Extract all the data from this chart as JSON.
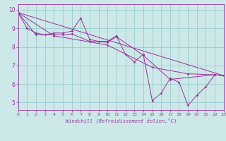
{
  "xlabel": "Windchill (Refroidissement éolien,°C)",
  "bg_color": "#cce8e8",
  "line_color": "#993399",
  "grid_color": "#99cccc",
  "xlim": [
    0,
    23
  ],
  "ylim": [
    4.6,
    10.3
  ],
  "xticks": [
    0,
    1,
    2,
    3,
    4,
    5,
    6,
    7,
    8,
    9,
    10,
    11,
    12,
    13,
    14,
    15,
    16,
    17,
    18,
    19,
    20,
    21,
    22,
    23
  ],
  "yticks": [
    5,
    6,
    7,
    8,
    9,
    10
  ],
  "series1": [
    [
      0,
      9.85
    ],
    [
      1,
      9.0
    ],
    [
      2,
      8.75
    ],
    [
      3,
      8.65
    ],
    [
      4,
      8.75
    ],
    [
      5,
      8.75
    ],
    [
      6,
      8.85
    ],
    [
      7,
      9.55
    ],
    [
      8,
      8.4
    ],
    [
      9,
      8.3
    ],
    [
      10,
      8.3
    ],
    [
      11,
      8.6
    ],
    [
      12,
      7.6
    ],
    [
      13,
      7.2
    ],
    [
      14,
      7.6
    ],
    [
      15,
      5.1
    ],
    [
      16,
      5.5
    ],
    [
      17,
      6.3
    ],
    [
      18,
      6.1
    ],
    [
      19,
      4.85
    ],
    [
      20,
      5.4
    ],
    [
      21,
      5.85
    ],
    [
      22,
      6.5
    ],
    [
      23,
      6.45
    ]
  ],
  "series2": [
    [
      0,
      9.85
    ],
    [
      2,
      8.65
    ],
    [
      4,
      8.65
    ],
    [
      5,
      8.65
    ],
    [
      6,
      8.7
    ],
    [
      8,
      8.3
    ],
    [
      10,
      8.25
    ],
    [
      11,
      8.55
    ],
    [
      14,
      7.55
    ],
    [
      17,
      6.25
    ],
    [
      22,
      6.5
    ],
    [
      23,
      6.45
    ]
  ],
  "series3": [
    [
      0,
      9.85
    ],
    [
      23,
      6.45
    ]
  ],
  "series4": [
    [
      0,
      9.85
    ],
    [
      4,
      8.6
    ],
    [
      10,
      8.1
    ],
    [
      15,
      6.9
    ],
    [
      19,
      6.55
    ],
    [
      22,
      6.5
    ],
    [
      23,
      6.45
    ]
  ]
}
